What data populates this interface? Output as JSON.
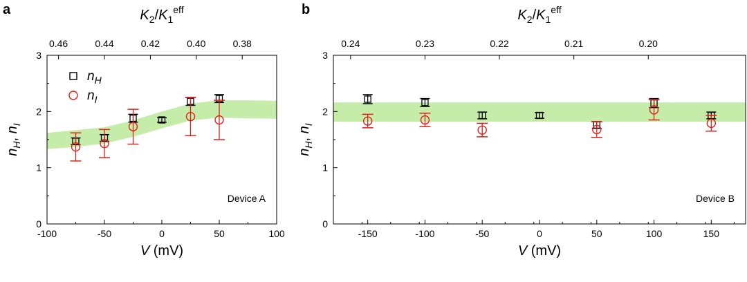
{
  "figure": {
    "panel_labels": [
      "a",
      "b"
    ]
  },
  "colors": {
    "nH": "#000000",
    "nI": "#e0201b",
    "band": "#c6ecaa"
  },
  "chart_data": [
    {
      "type": "scatter",
      "panel": "a",
      "device_label": "Device A",
      "xlabel": "V (mV)",
      "ylabel": "nH, nI",
      "top_axis_label": "K2/K1eff",
      "xlim": [
        -100,
        100
      ],
      "ylim": [
        0,
        3
      ],
      "xticks": [
        -100,
        -50,
        0,
        50,
        100
      ],
      "yticks": [
        0,
        1,
        2,
        3
      ],
      "top_ticks": [
        "0.46",
        "0.44",
        "0.42",
        "0.40",
        "0.38"
      ],
      "top_tick_positions": [
        -90,
        -50,
        -10,
        30,
        70
      ],
      "legend": [
        "nH",
        "nI"
      ],
      "legend_position": "top-left",
      "grid": false,
      "band": {
        "x": [
          -100,
          -75,
          -50,
          -25,
          0,
          25,
          50,
          75,
          100
        ],
        "low": [
          1.33,
          1.37,
          1.43,
          1.55,
          1.7,
          1.84,
          1.89,
          1.88,
          1.87
        ],
        "high": [
          1.62,
          1.67,
          1.72,
          1.84,
          2.0,
          2.14,
          2.2,
          2.2,
          2.19
        ]
      },
      "series": [
        {
          "name": "nH",
          "marker": "square",
          "x": [
            -75,
            -50,
            -25,
            0,
            25,
            50
          ],
          "y": [
            1.47,
            1.53,
            1.88,
            1.85,
            2.18,
            2.23
          ],
          "yerr": [
            0.06,
            0.06,
            0.07,
            0.04,
            0.07,
            0.07
          ]
        },
        {
          "name": "nI",
          "marker": "circle",
          "x": [
            -75,
            -50,
            -25,
            0,
            25,
            50
          ],
          "y": [
            1.37,
            1.43,
            1.73,
            null,
            1.91,
            1.85
          ],
          "yerr": [
            0.25,
            0.25,
            0.31,
            null,
            0.34,
            0.35
          ]
        }
      ]
    },
    {
      "type": "scatter",
      "panel": "b",
      "device_label": "Device B",
      "xlabel": "V (mV)",
      "ylabel": "nH, nI",
      "top_axis_label": "K2/K1eff",
      "xlim": [
        -180,
        180
      ],
      "ylim": [
        0,
        3
      ],
      "xticks": [
        -150,
        -100,
        -50,
        0,
        50,
        100,
        150
      ],
      "yticks": [
        0,
        1,
        2,
        3
      ],
      "top_ticks": [
        "0.24",
        "0.23",
        "0.22",
        "0.21",
        "0.20"
      ],
      "top_tick_positions": [
        -165,
        -100,
        -35,
        30,
        95
      ],
      "grid": false,
      "band": {
        "x": [
          -180,
          180
        ],
        "low": [
          1.82,
          1.82
        ],
        "high": [
          2.16,
          2.16
        ]
      },
      "series": [
        {
          "name": "nH",
          "marker": "square",
          "x": [
            -150,
            -100,
            -50,
            0,
            50,
            100,
            150
          ],
          "y": [
            2.22,
            2.16,
            1.93,
            1.93,
            1.76,
            2.15,
            1.93
          ],
          "yerr": [
            0.08,
            0.07,
            0.06,
            0.05,
            0.06,
            0.08,
            0.06
          ]
        },
        {
          "name": "nI",
          "marker": "circle",
          "x": [
            -150,
            -100,
            -50,
            0,
            50,
            100,
            150
          ],
          "y": [
            1.83,
            1.85,
            1.67,
            null,
            1.68,
            2.03,
            1.79
          ],
          "yerr": [
            0.12,
            0.12,
            0.12,
            null,
            0.14,
            0.18,
            0.14
          ]
        }
      ]
    }
  ]
}
